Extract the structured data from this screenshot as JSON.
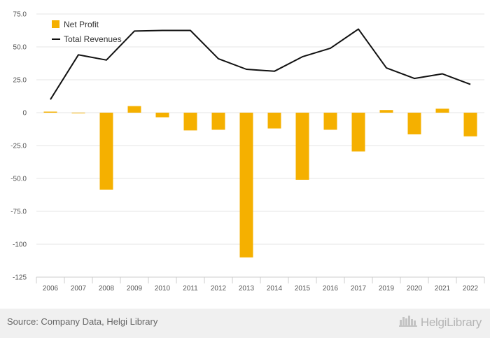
{
  "chart_data": {
    "type": "bar+line",
    "categories": [
      "2006",
      "2007",
      "2008",
      "2009",
      "2010",
      "2011",
      "2012",
      "2013",
      "2014",
      "2015",
      "2016",
      "2017",
      "2019",
      "2020",
      "2021",
      "2022"
    ],
    "series": [
      {
        "name": "Net Profit",
        "type": "bar",
        "color": "#f5b000",
        "values": [
          0.8,
          -0.5,
          -58.5,
          5.0,
          -3.5,
          -13.5,
          -13.0,
          -110.0,
          -12.0,
          -51.0,
          -13.0,
          -29.5,
          2.0,
          -16.5,
          3.0,
          -18.0
        ]
      },
      {
        "name": "Total Revenues",
        "type": "line",
        "color": "#111111",
        "values": [
          10.0,
          44.0,
          40.0,
          62.0,
          62.5,
          62.5,
          41.0,
          33.0,
          31.5,
          42.5,
          49.0,
          63.5,
          34.0,
          26.0,
          29.5,
          21.5
        ]
      }
    ],
    "yticks": [
      "75.0",
      "50.0",
      "25.0",
      "0",
      "-25.0",
      "-50.0",
      "-75.0",
      "-100",
      "-125"
    ],
    "ylim": [
      -125,
      75
    ],
    "legend_position": "top-left",
    "grid": true
  },
  "footer": {
    "source": "Source: Company Data, Helgi Library",
    "brand": "HelgiLibrary",
    "logo_icon": "building-skyline-icon"
  }
}
